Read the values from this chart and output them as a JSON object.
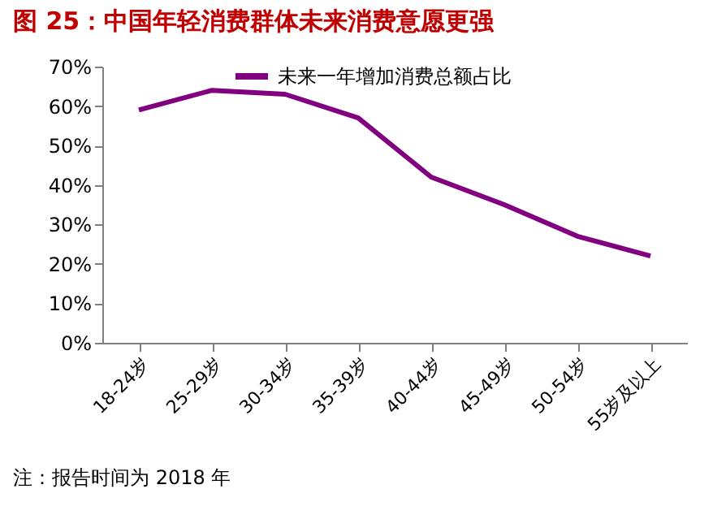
{
  "chart_data": {
    "type": "line",
    "title": "图 25：中国年轻消费群体未来消费意愿更强",
    "categories": [
      "18-24岁",
      "25-29岁",
      "30-34岁",
      "35-39岁",
      "40-44岁",
      "45-49岁",
      "50-54岁",
      "55岁及以上"
    ],
    "series": [
      {
        "name": "未来一年增加消费总额占比",
        "color": "#800080",
        "values": [
          59,
          64,
          63,
          57,
          42,
          35,
          27,
          22
        ]
      }
    ],
    "ylim": [
      0,
      70
    ],
    "yticks": [
      {
        "value": 0,
        "label": "0%"
      },
      {
        "value": 10,
        "label": "10%"
      },
      {
        "value": 20,
        "label": "20%"
      },
      {
        "value": 30,
        "label": "30%"
      },
      {
        "value": 40,
        "label": "40%"
      },
      {
        "value": 50,
        "label": "50%"
      },
      {
        "value": 60,
        "label": "60%"
      },
      {
        "value": 70,
        "label": "70%"
      }
    ],
    "grid": false,
    "legend": "top",
    "marker": "none",
    "line_style": "solid",
    "annotations": [
      "注：报告时间为 2018 年"
    ]
  }
}
